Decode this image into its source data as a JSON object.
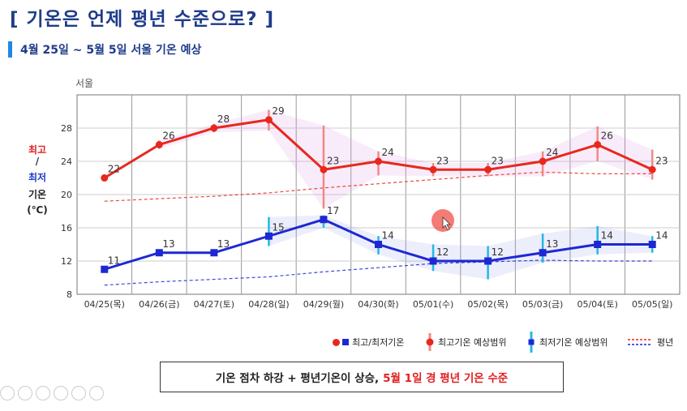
{
  "header": {
    "title": "[ 기온은 언제 평년 수준으로? ]",
    "subtitle": "4월 25일 ~ 5월 5일 서울 기온 예상"
  },
  "ylabel": {
    "max": "최고",
    "slash": "/",
    "min": "최저",
    "temp": "기온",
    "unit": "(℃)"
  },
  "chart_data": {
    "type": "line",
    "title": "서울",
    "categories": [
      "04/25(목)",
      "04/26(금)",
      "04/27(토)",
      "04/28(일)",
      "04/29(월)",
      "04/30(화)",
      "05/01(수)",
      "05/02(목)",
      "05/03(금)",
      "05/04(토)",
      "05/05(일)"
    ],
    "ylim": [
      8,
      32
    ],
    "yticks": [
      "8",
      "12",
      "16",
      "20",
      "24",
      "28"
    ],
    "grid": true,
    "series": [
      {
        "name": "최고기온",
        "values": [
          22,
          26,
          28,
          29,
          23,
          24,
          23,
          23,
          24,
          26,
          23
        ],
        "color": "#e8281e",
        "range": [
          null,
          [
            25.5,
            26.5
          ],
          [
            27.5,
            28.5
          ],
          [
            27.7,
            30.2
          ],
          [
            18.3,
            28.3
          ],
          [
            22.3,
            25.2
          ],
          [
            22.2,
            23.8
          ],
          [
            22.2,
            23.8
          ],
          [
            22.2,
            25.2
          ],
          [
            24,
            28.2
          ],
          [
            21.8,
            25.4
          ]
        ]
      },
      {
        "name": "최저기온",
        "values": [
          11,
          13,
          13,
          15,
          17,
          14,
          12,
          12,
          13,
          14,
          14
        ],
        "color": "#1e28d2",
        "range": [
          null,
          null,
          null,
          [
            13.8,
            17.3
          ],
          [
            16,
            17.5
          ],
          [
            12.8,
            15
          ],
          [
            10.8,
            14
          ],
          [
            9.8,
            13.8
          ],
          [
            11.8,
            15.3
          ],
          [
            12.8,
            16.2
          ],
          [
            13,
            15
          ]
        ]
      },
      {
        "name": "평년최고",
        "values": [
          19.2,
          19.5,
          19.8,
          20.2,
          20.8,
          21.3,
          21.8,
          22.3,
          22.7,
          22.5,
          22.5
        ],
        "color": "#e8281e"
      },
      {
        "name": "평년최저",
        "values": [
          9.1,
          9.5,
          9.8,
          10.1,
          10.7,
          11.2,
          11.7,
          11.9,
          12.1,
          12.0,
          12.0
        ],
        "color": "#1e28d2"
      }
    ],
    "max_label_shown": [
      true,
      true,
      true,
      true,
      true,
      true,
      true,
      true,
      true,
      true,
      true
    ],
    "min_label_shown": [
      true,
      true,
      true,
      true,
      true,
      true,
      true,
      true,
      true,
      true,
      true
    ]
  },
  "legend": {
    "item1": "최고/최저기온",
    "item2": "최고기온 예상범위",
    "item3": "최저기온 예상범위",
    "item4": "평년"
  },
  "summary": {
    "text": "기온 점차 하강 + 평년기온이 상승,",
    "highlight": "5월 1일 경 평년 기온 수준"
  }
}
